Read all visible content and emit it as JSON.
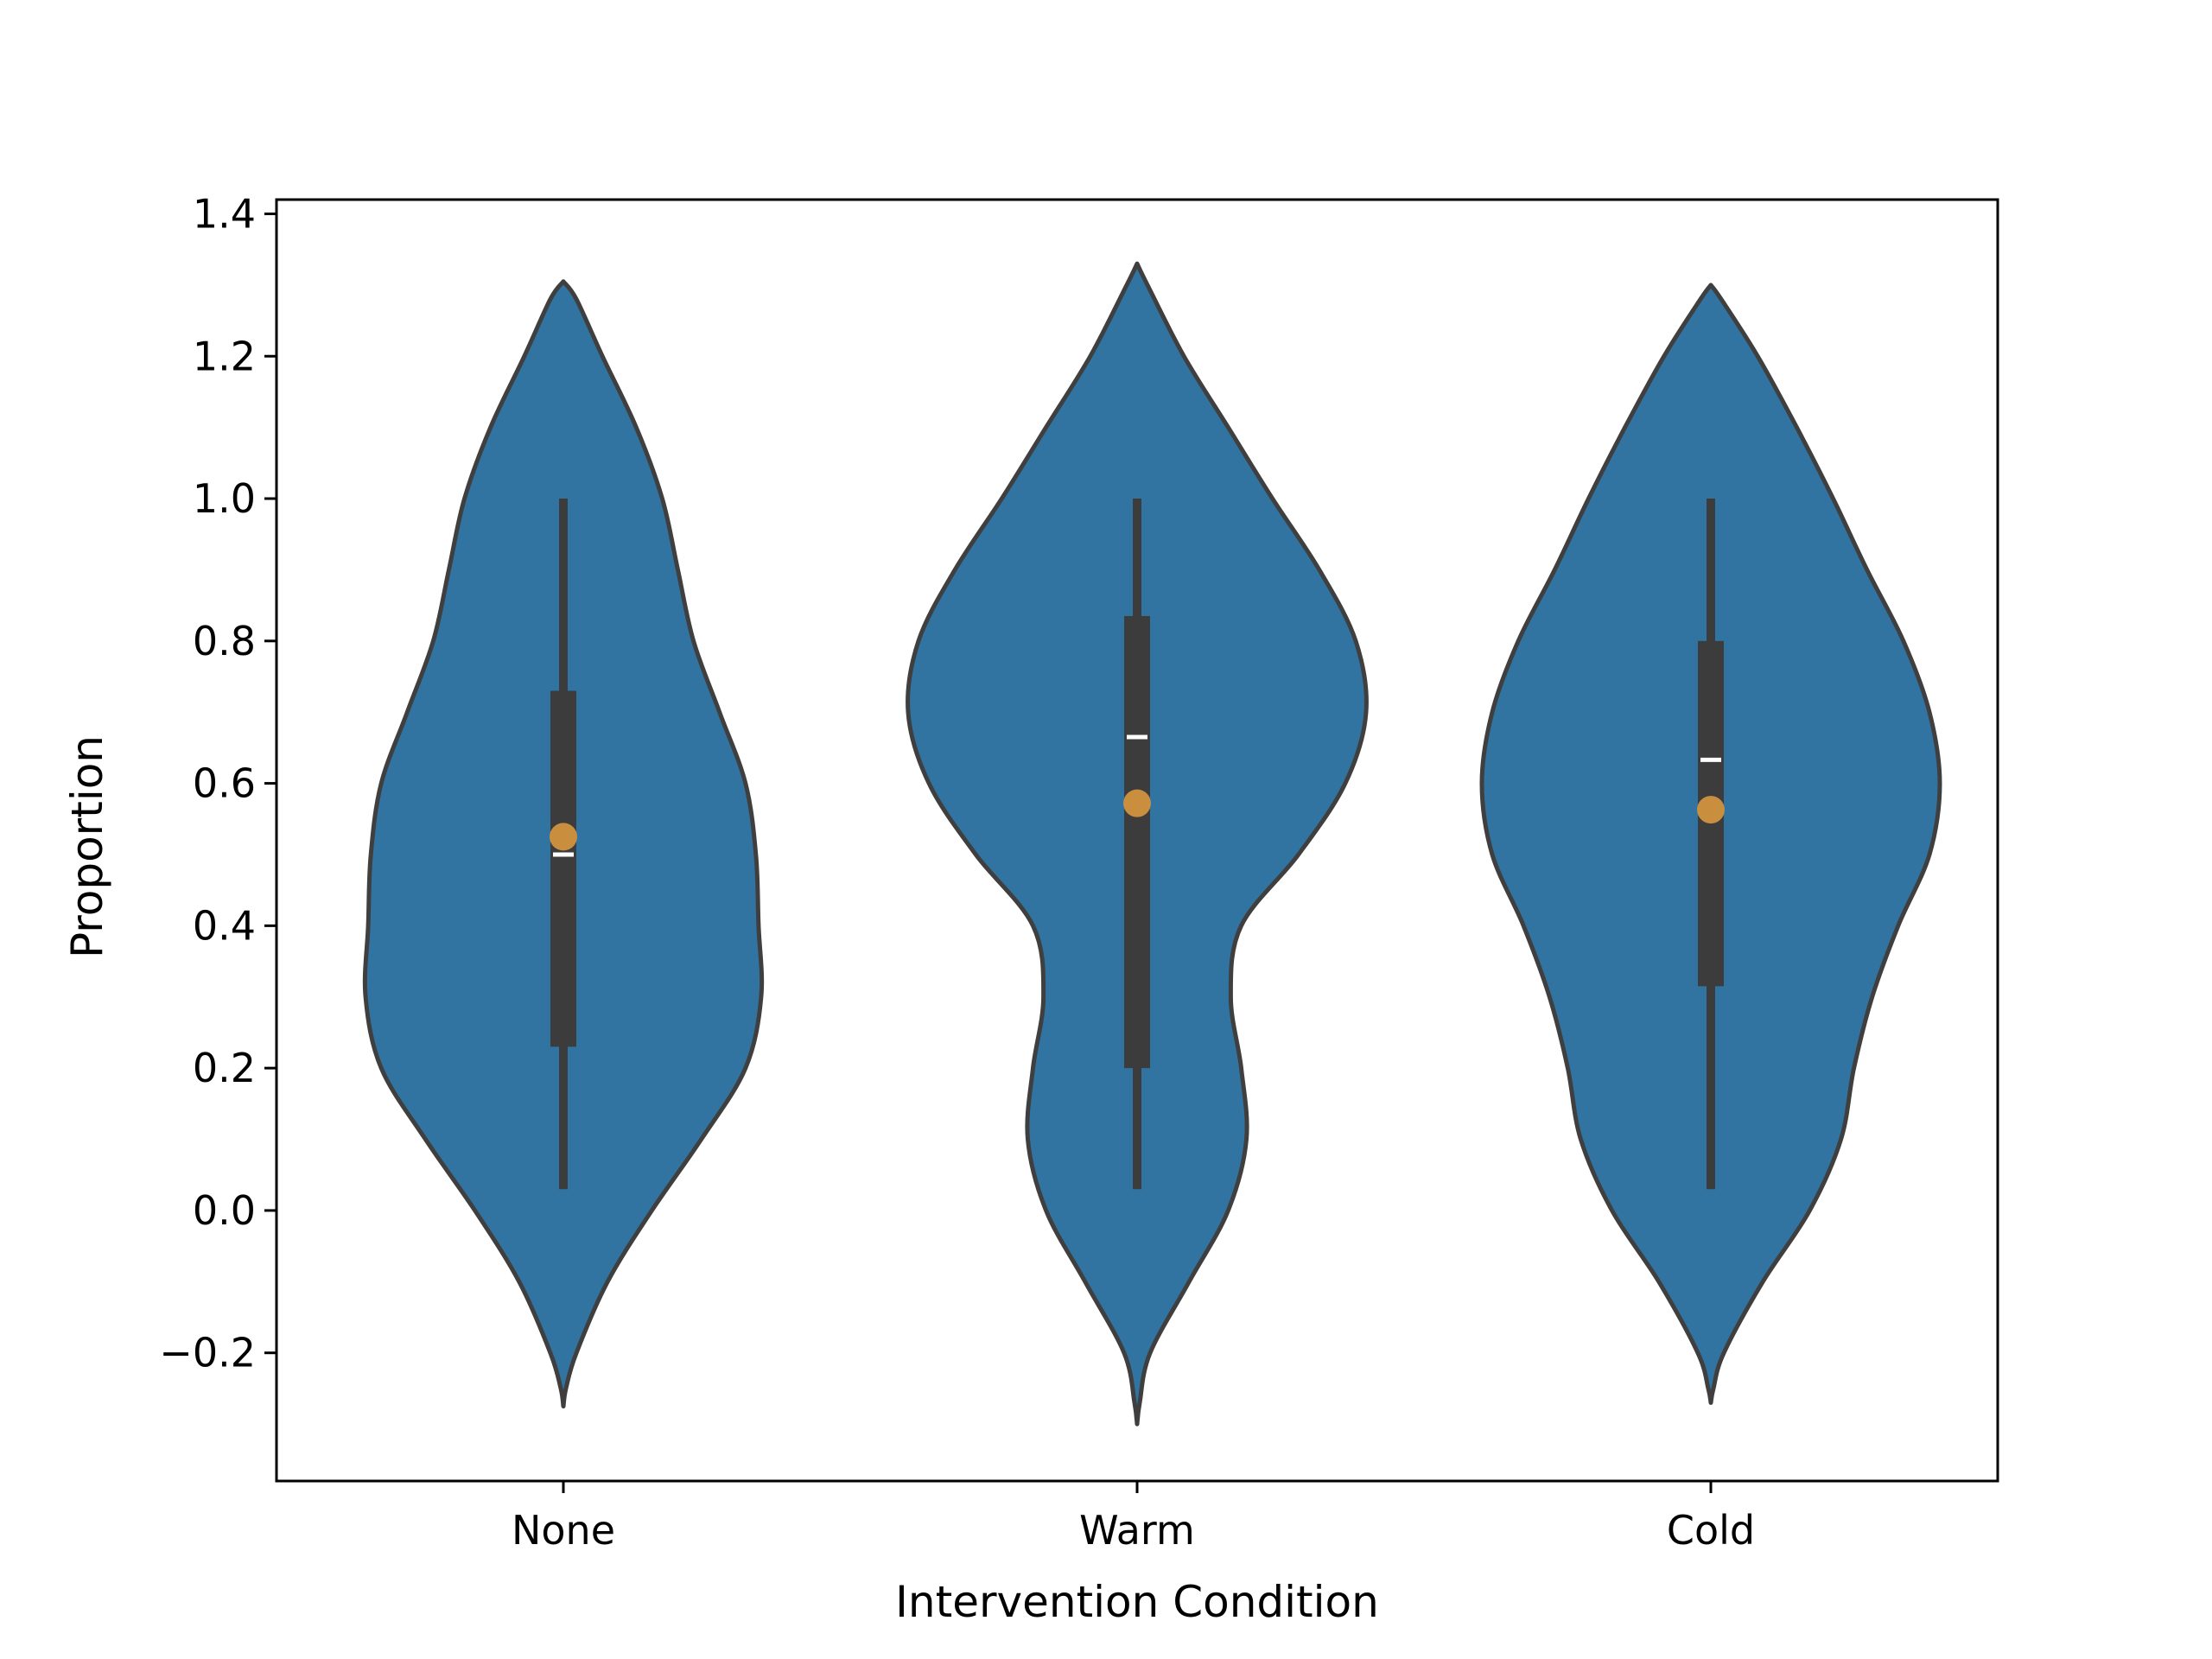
{
  "chart_data": {
    "type": "violin",
    "title": "",
    "xlabel": "Intervention Condition",
    "ylabel": "Proportion",
    "ylim": [
      -0.38,
      1.42
    ],
    "yticks": [
      -0.2,
      0.0,
      0.2,
      0.4,
      0.6,
      0.8,
      1.0,
      1.2,
      1.4
    ],
    "ytick_labels": [
      "−0.2",
      "0.0",
      "0.2",
      "0.4",
      "0.6",
      "0.8",
      "1.0",
      "1.2",
      "1.4"
    ],
    "categories": [
      "None",
      "Warm",
      "Cold"
    ],
    "colors": {
      "violin_fill": "#3274a1",
      "violin_edge": "#3f3f3f",
      "box": "#3c3c3c",
      "median": "#ffffff",
      "mean_marker": "#c98f3e"
    },
    "violins": [
      {
        "name": "None",
        "kde_min": -0.275,
        "kde_max": 1.305,
        "whisker_low": 0.03,
        "q1": 0.23,
        "median": 0.5,
        "q3": 0.73,
        "whisker_high": 1.0,
        "mean": 0.525,
        "density_profile": [
          [
            -0.275,
            0.0
          ],
          [
            -0.25,
            0.01
          ],
          [
            -0.2,
            0.05
          ],
          [
            -0.1,
            0.17
          ],
          [
            0.0,
            0.34
          ],
          [
            0.1,
            0.53
          ],
          [
            0.2,
            0.7
          ],
          [
            0.3,
            0.76
          ],
          [
            0.4,
            0.75
          ],
          [
            0.5,
            0.74
          ],
          [
            0.6,
            0.7
          ],
          [
            0.7,
            0.6
          ],
          [
            0.8,
            0.5
          ],
          [
            0.9,
            0.44
          ],
          [
            1.0,
            0.38
          ],
          [
            1.1,
            0.28
          ],
          [
            1.2,
            0.15
          ],
          [
            1.28,
            0.05
          ],
          [
            1.305,
            0.0
          ]
        ]
      },
      {
        "name": "Warm",
        "kde_min": -0.3,
        "kde_max": 1.33,
        "whisker_low": 0.03,
        "q1": 0.2,
        "median": 0.665,
        "q3": 0.835,
        "whisker_high": 1.0,
        "mean": 0.572,
        "density_profile": [
          [
            -0.3,
            0.0
          ],
          [
            -0.27,
            0.01
          ],
          [
            -0.2,
            0.05
          ],
          [
            -0.1,
            0.2
          ],
          [
            0.0,
            0.35
          ],
          [
            0.1,
            0.42
          ],
          [
            0.2,
            0.4
          ],
          [
            0.3,
            0.36
          ],
          [
            0.4,
            0.4
          ],
          [
            0.5,
            0.62
          ],
          [
            0.6,
            0.8
          ],
          [
            0.7,
            0.88
          ],
          [
            0.8,
            0.84
          ],
          [
            0.9,
            0.7
          ],
          [
            1.0,
            0.52
          ],
          [
            1.1,
            0.35
          ],
          [
            1.2,
            0.18
          ],
          [
            1.3,
            0.04
          ],
          [
            1.33,
            0.0
          ]
        ]
      },
      {
        "name": "Cold",
        "kde_min": -0.27,
        "kde_max": 1.3,
        "whisker_low": 0.03,
        "q1": 0.315,
        "median": 0.633,
        "q3": 0.8,
        "whisker_high": 1.0,
        "mean": 0.563,
        "density_profile": [
          [
            -0.27,
            0.0
          ],
          [
            -0.25,
            0.01
          ],
          [
            -0.2,
            0.05
          ],
          [
            -0.1,
            0.2
          ],
          [
            0.0,
            0.38
          ],
          [
            0.1,
            0.5
          ],
          [
            0.2,
            0.55
          ],
          [
            0.3,
            0.62
          ],
          [
            0.4,
            0.72
          ],
          [
            0.5,
            0.84
          ],
          [
            0.6,
            0.88
          ],
          [
            0.7,
            0.84
          ],
          [
            0.8,
            0.74
          ],
          [
            0.9,
            0.6
          ],
          [
            1.0,
            0.47
          ],
          [
            1.1,
            0.33
          ],
          [
            1.2,
            0.18
          ],
          [
            1.28,
            0.04
          ],
          [
            1.3,
            0.0
          ]
        ]
      }
    ]
  }
}
